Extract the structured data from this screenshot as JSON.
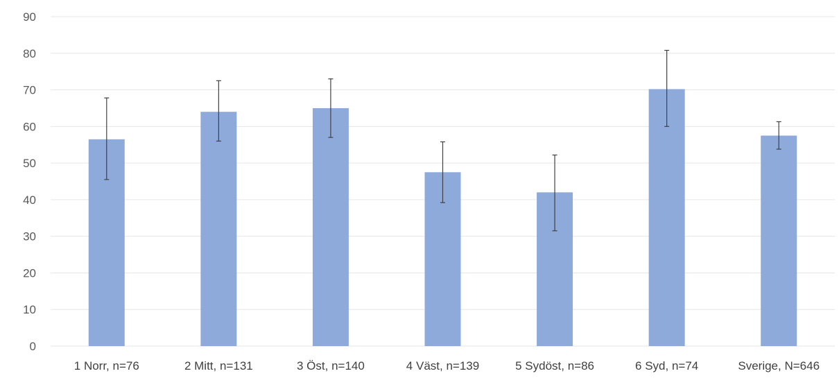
{
  "chart_data": {
    "type": "bar",
    "title": "",
    "xlabel": "",
    "ylabel": "",
    "categories": [
      "1 Norr, n=76",
      "2 Mitt, n=131",
      "3 Öst, n=140",
      "4 Väst, n=139",
      "5 Sydöst, n=86",
      "6 Syd, n=74",
      "Sverige, N=646"
    ],
    "values": [
      56.5,
      64,
      65,
      47.5,
      42,
      70.2,
      57.5
    ],
    "error_low": [
      45.5,
      56,
      57,
      39.2,
      31.5,
      60,
      53.8
    ],
    "error_high": [
      67.8,
      72.5,
      73,
      55.8,
      52.2,
      80.8,
      61.3
    ],
    "ylim": [
      0,
      90
    ],
    "yticks": [
      0,
      10,
      20,
      30,
      40,
      50,
      60,
      70,
      80,
      90
    ],
    "grid": true,
    "legend": "none",
    "bar_color": "#8eaadb",
    "error_bar_color": "#404040"
  }
}
